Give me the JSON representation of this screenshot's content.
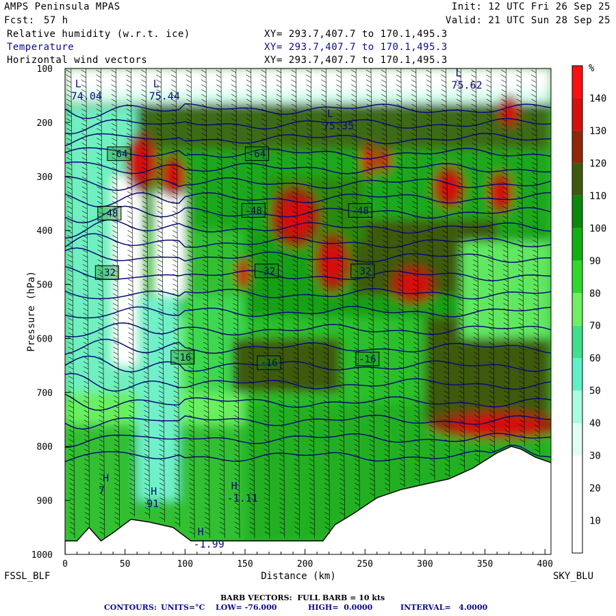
{
  "header": {
    "model": "AMPS Peninsula MPAS",
    "forecast_label": "Fcst:",
    "forecast_value": "57 h",
    "init": "Init: 12 UTC Fri 26 Sep 25",
    "valid": "Valid: 21 UTC Sun 28 Sep 25",
    "fields": [
      {
        "label": "Relative humidity (w.r.t. ice)",
        "xy": "XY= 293.7,407.7 to 170.1,495.3"
      },
      {
        "label": "Temperature",
        "xy": "XY= 293.7,407.7 to 170.1,495.3"
      },
      {
        "label": "Horizontal wind vectors",
        "xy": "XY= 293.7,407.7 to 170.1,495.3"
      }
    ]
  },
  "chart_data": {
    "type": "heatmap",
    "xlabel": "Distance (km)",
    "ylabel": "Pressure (hPa)",
    "xlim": [
      0,
      405
    ],
    "ylim": [
      1000,
      100
    ],
    "xticks": [
      0,
      50,
      100,
      150,
      200,
      250,
      300,
      350,
      400
    ],
    "yticks": [
      100,
      200,
      300,
      400,
      500,
      600,
      700,
      800,
      900,
      1000
    ],
    "left_endpoint": "FSSL_BLF",
    "right_endpoint": "SKY_BLU",
    "colorbar": {
      "unit": "%",
      "levels": [
        10,
        20,
        30,
        40,
        50,
        60,
        70,
        80,
        90,
        100,
        110,
        120,
        130,
        140
      ],
      "colors": [
        "#ffffff",
        "#ffffff",
        "#ffffff",
        "#e0fff4",
        "#a8fce0",
        "#60f0c8",
        "#40e08a",
        "#6cf060",
        "#30d82c",
        "#10b010",
        "#0a8a0a",
        "#3e5a10",
        "#902808",
        "#d81008",
        "#ff1010"
      ]
    },
    "temperature_contours": {
      "units": "°C",
      "low": "-76.000",
      "high": "0.0000",
      "interval": "4.0000"
    },
    "contour_labels": [
      {
        "text": "-64",
        "x": 45,
        "p": 258
      },
      {
        "text": "-64",
        "x": 160,
        "p": 258
      },
      {
        "text": "-48",
        "x": 37,
        "p": 368
      },
      {
        "text": "-48",
        "x": 157,
        "p": 363
      },
      {
        "text": "-48",
        "x": 246,
        "p": 363
      },
      {
        "text": "-32",
        "x": 35,
        "p": 478
      },
      {
        "text": "-32",
        "x": 168,
        "p": 475
      },
      {
        "text": "-32",
        "x": 248,
        "p": 475
      },
      {
        "text": "-16",
        "x": 98,
        "p": 635
      },
      {
        "text": "-16",
        "x": 170,
        "p": 645
      },
      {
        "text": "-16",
        "x": 252,
        "p": 638
      }
    ],
    "extrema": [
      {
        "kind": "L",
        "value": "74.04",
        "x": 5,
        "p": 150
      },
      {
        "kind": "L",
        "value": "75.44",
        "x": 70,
        "p": 150
      },
      {
        "kind": "L",
        "value": "75.35",
        "x": 215,
        "p": 205
      },
      {
        "kind": "L",
        "value": "75.62",
        "x": 322,
        "p": 130
      },
      {
        "kind": "H",
        "value": "7",
        "x": 28,
        "p": 880
      },
      {
        "kind": "H",
        "value": "91",
        "x": 68,
        "p": 905
      },
      {
        "kind": "H",
        "value": "-1.11",
        "x": 135,
        "p": 895
      },
      {
        "kind": "H",
        "value": "-1.99",
        "x": 107,
        "p": 980
      }
    ],
    "barb_note": "BARB VECTORS:  FULL BARB = 10 kts"
  },
  "footer": {
    "contours_label": "CONTOURS:",
    "units": "UNITS=°C",
    "low": "LOW= -76.000",
    "high": "HIGH=  0.0000",
    "interval": "INTERVAL=   4.0000"
  }
}
